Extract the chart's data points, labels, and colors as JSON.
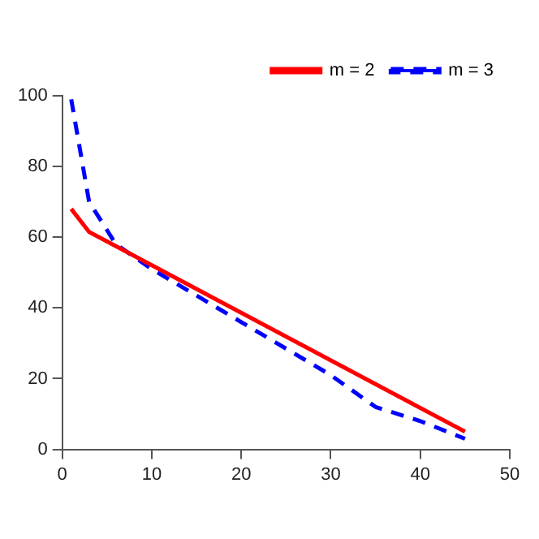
{
  "chart_data": {
    "type": "line",
    "xlim": [
      0,
      50
    ],
    "xticks": [
      0,
      10,
      20,
      30,
      40,
      50
    ],
    "ylim": [
      0,
      100
    ],
    "yticks": [
      0,
      20,
      40,
      60,
      80,
      100
    ],
    "grid": false,
    "legend": "top right",
    "marker": "none",
    "series": [
      {
        "name": "m = 2",
        "color": "#ff0000",
        "line_style": "solid",
        "x": [
          1,
          3,
          45
        ],
        "values": [
          68,
          61.5,
          5
        ]
      },
      {
        "name": "m = 3",
        "color": "#0000ff",
        "line_style": "dashed",
        "x": [
          1,
          3,
          6,
          10,
          20,
          30,
          35,
          40,
          45
        ],
        "values": [
          99,
          70,
          58,
          51,
          36,
          21,
          12,
          8,
          3
        ]
      }
    ]
  }
}
